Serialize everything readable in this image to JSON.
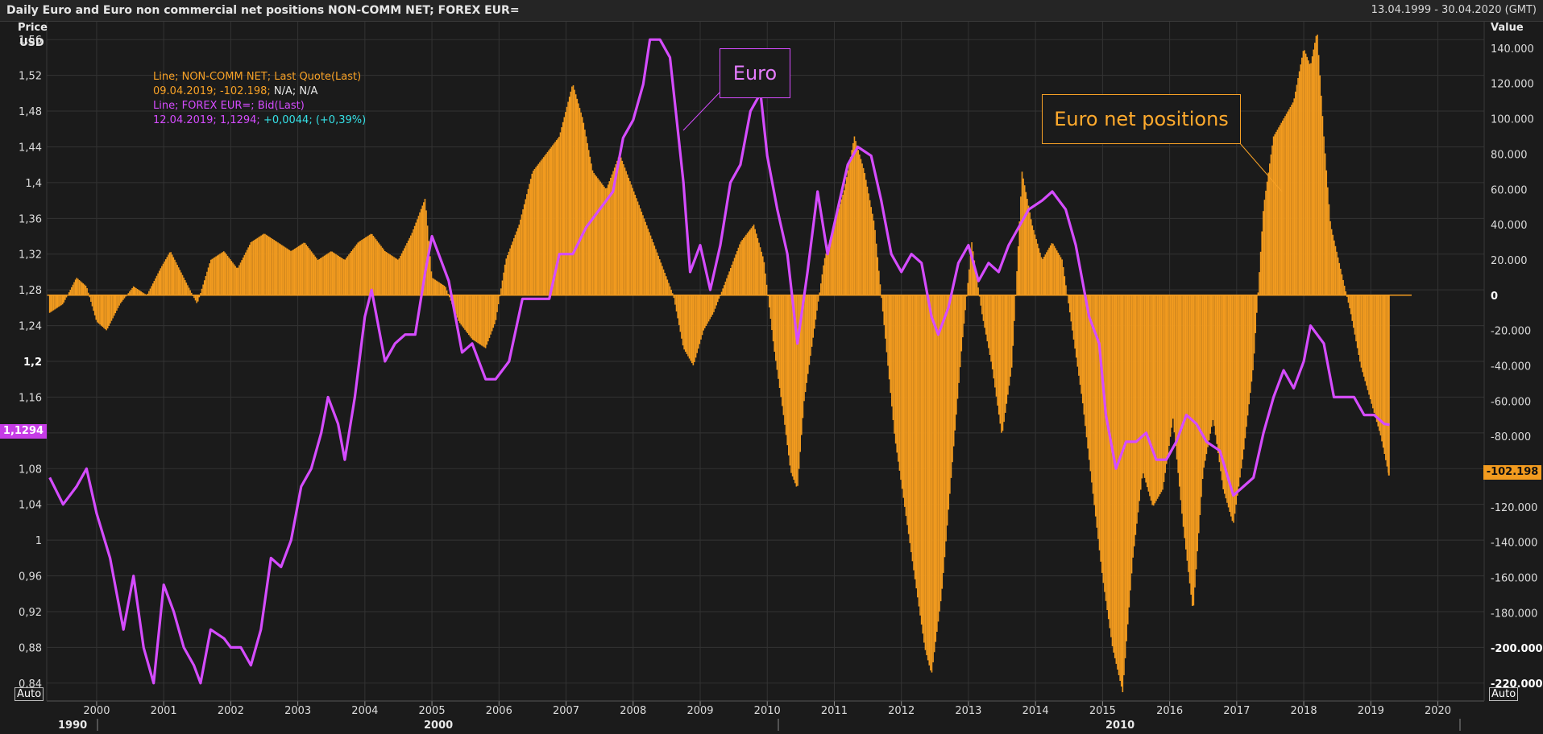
{
  "header": {
    "title": "Daily Euro and Euro non commercial net positions NON-COMM NET; FOREX EUR=",
    "date_range": "13.04.1999 - 30.04.2020 (GMT)"
  },
  "legend": {
    "line1": "Line; NON-COMM NET; Last Quote(Last)",
    "line2_date_value": "09.04.2019; -102.198;",
    "line2_na": " N/A; N/A",
    "line3": "Line; FOREX EUR=; Bid(Last)",
    "line4_date_value": "12.04.2019; 1,1294;",
    "line4_change": " +0,0044; (+0,39%)"
  },
  "left_axis": {
    "unit_line1": "Price",
    "unit_line2": "USD",
    "last_price_tag": "1,1294",
    "auto_label": "Auto"
  },
  "right_axis": {
    "unit": "Value",
    "last_value_tag": "-102.198",
    "auto_label": "Auto"
  },
  "annotations": {
    "euro": "Euro",
    "net_positions": "Euro net positions"
  },
  "decades": [
    "1990",
    "2000",
    "2010"
  ],
  "colors": {
    "euro_line": "#d54cff",
    "net_bars": "#f29b1f",
    "background": "#1b1b1b",
    "grid": "#333333"
  },
  "chart_data": {
    "type": "line+bar",
    "x_axis_years": [
      "2000",
      "2001",
      "2002",
      "2003",
      "2004",
      "2005",
      "2006",
      "2007",
      "2008",
      "2009",
      "2010",
      "2011",
      "2012",
      "2013",
      "2014",
      "2015",
      "2016",
      "2017",
      "2018",
      "2019",
      "2020"
    ],
    "x_range": [
      1999.28,
      2020.33
    ],
    "left_axis": {
      "label": "Price USD",
      "ylim": [
        0.82,
        1.58
      ],
      "ticks": [
        "1,56",
        "1,52",
        "1,48",
        "1,44",
        "1,4",
        "1,36",
        "1,32",
        "1,28",
        "1,24",
        "1,2",
        "1,16",
        "1,12",
        "1,08",
        "1,04",
        "1",
        "0,96",
        "0,92",
        "0,88",
        "0,84"
      ],
      "tick_values": [
        1.56,
        1.52,
        1.48,
        1.44,
        1.4,
        1.36,
        1.32,
        1.28,
        1.24,
        1.2,
        1.16,
        1.12,
        1.08,
        1.04,
        1.0,
        0.96,
        0.92,
        0.88,
        0.84
      ]
    },
    "right_axis": {
      "label": "Value",
      "ylim": [
        -230000,
        155000
      ],
      "ticks": [
        "140.000",
        "120.000",
        "100.000",
        "80.000",
        "60.000",
        "40.000",
        "20.000",
        "0",
        "-20.000",
        "-40.000",
        "-60.000",
        "-80.000",
        "-100.000",
        "-120.000",
        "-140.000",
        "-160.000",
        "-180.000",
        "-200.000",
        "-220.000"
      ],
      "tick_values": [
        140000,
        120000,
        100000,
        80000,
        60000,
        40000,
        20000,
        0,
        -20000,
        -40000,
        -60000,
        -80000,
        -100000,
        -120000,
        -140000,
        -160000,
        -180000,
        -200000,
        -220000
      ]
    },
    "series": [
      {
        "name": "FOREX EUR=",
        "kind": "line",
        "points": [
          [
            1999.3,
            1.07
          ],
          [
            1999.5,
            1.04
          ],
          [
            1999.7,
            1.06
          ],
          [
            1999.85,
            1.08
          ],
          [
            2000.0,
            1.03
          ],
          [
            2000.2,
            0.98
          ],
          [
            2000.4,
            0.9
          ],
          [
            2000.55,
            0.96
          ],
          [
            2000.7,
            0.88
          ],
          [
            2000.85,
            0.84
          ],
          [
            2001.0,
            0.95
          ],
          [
            2001.15,
            0.92
          ],
          [
            2001.3,
            0.88
          ],
          [
            2001.45,
            0.86
          ],
          [
            2001.55,
            0.84
          ],
          [
            2001.7,
            0.9
          ],
          [
            2001.9,
            0.89
          ],
          [
            2002.0,
            0.88
          ],
          [
            2002.15,
            0.88
          ],
          [
            2002.3,
            0.86
          ],
          [
            2002.45,
            0.9
          ],
          [
            2002.6,
            0.98
          ],
          [
            2002.75,
            0.97
          ],
          [
            2002.9,
            1.0
          ],
          [
            2003.05,
            1.06
          ],
          [
            2003.2,
            1.08
          ],
          [
            2003.35,
            1.12
          ],
          [
            2003.45,
            1.16
          ],
          [
            2003.6,
            1.13
          ],
          [
            2003.7,
            1.09
          ],
          [
            2003.85,
            1.16
          ],
          [
            2004.0,
            1.25
          ],
          [
            2004.1,
            1.28
          ],
          [
            2004.3,
            1.2
          ],
          [
            2004.45,
            1.22
          ],
          [
            2004.6,
            1.23
          ],
          [
            2004.75,
            1.23
          ],
          [
            2004.9,
            1.3
          ],
          [
            2005.0,
            1.34
          ],
          [
            2005.1,
            1.32
          ],
          [
            2005.25,
            1.29
          ],
          [
            2005.45,
            1.21
          ],
          [
            2005.6,
            1.22
          ],
          [
            2005.8,
            1.18
          ],
          [
            2005.95,
            1.18
          ],
          [
            2006.15,
            1.2
          ],
          [
            2006.35,
            1.27
          ],
          [
            2006.55,
            1.27
          ],
          [
            2006.75,
            1.27
          ],
          [
            2006.9,
            1.32
          ],
          [
            2007.1,
            1.32
          ],
          [
            2007.3,
            1.35
          ],
          [
            2007.5,
            1.37
          ],
          [
            2007.7,
            1.39
          ],
          [
            2007.85,
            1.45
          ],
          [
            2008.0,
            1.47
          ],
          [
            2008.15,
            1.51
          ],
          [
            2008.25,
            1.56
          ],
          [
            2008.4,
            1.56
          ],
          [
            2008.55,
            1.54
          ],
          [
            2008.65,
            1.47
          ],
          [
            2008.75,
            1.4
          ],
          [
            2008.85,
            1.3
          ],
          [
            2009.0,
            1.33
          ],
          [
            2009.15,
            1.28
          ],
          [
            2009.3,
            1.33
          ],
          [
            2009.45,
            1.4
          ],
          [
            2009.6,
            1.42
          ],
          [
            2009.75,
            1.48
          ],
          [
            2009.9,
            1.5
          ],
          [
            2010.0,
            1.43
          ],
          [
            2010.15,
            1.37
          ],
          [
            2010.3,
            1.32
          ],
          [
            2010.45,
            1.22
          ],
          [
            2010.6,
            1.3
          ],
          [
            2010.75,
            1.39
          ],
          [
            2010.9,
            1.32
          ],
          [
            2011.05,
            1.37
          ],
          [
            2011.2,
            1.42
          ],
          [
            2011.35,
            1.44
          ],
          [
            2011.55,
            1.43
          ],
          [
            2011.7,
            1.38
          ],
          [
            2011.85,
            1.32
          ],
          [
            2012.0,
            1.3
          ],
          [
            2012.15,
            1.32
          ],
          [
            2012.3,
            1.31
          ],
          [
            2012.45,
            1.25
          ],
          [
            2012.55,
            1.23
          ],
          [
            2012.7,
            1.26
          ],
          [
            2012.85,
            1.31
          ],
          [
            2013.0,
            1.33
          ],
          [
            2013.15,
            1.29
          ],
          [
            2013.3,
            1.31
          ],
          [
            2013.45,
            1.3
          ],
          [
            2013.6,
            1.33
          ],
          [
            2013.75,
            1.35
          ],
          [
            2013.9,
            1.37
          ],
          [
            2014.1,
            1.38
          ],
          [
            2014.25,
            1.39
          ],
          [
            2014.45,
            1.37
          ],
          [
            2014.6,
            1.33
          ],
          [
            2014.8,
            1.25
          ],
          [
            2014.95,
            1.22
          ],
          [
            2015.05,
            1.14
          ],
          [
            2015.2,
            1.08
          ],
          [
            2015.35,
            1.11
          ],
          [
            2015.5,
            1.11
          ],
          [
            2015.65,
            1.12
          ],
          [
            2015.8,
            1.09
          ],
          [
            2015.95,
            1.09
          ],
          [
            2016.1,
            1.11
          ],
          [
            2016.25,
            1.14
          ],
          [
            2016.4,
            1.13
          ],
          [
            2016.55,
            1.11
          ],
          [
            2016.75,
            1.1
          ],
          [
            2016.95,
            1.05
          ],
          [
            2017.1,
            1.06
          ],
          [
            2017.25,
            1.07
          ],
          [
            2017.4,
            1.12
          ],
          [
            2017.55,
            1.16
          ],
          [
            2017.7,
            1.19
          ],
          [
            2017.85,
            1.17
          ],
          [
            2018.0,
            1.2
          ],
          [
            2018.1,
            1.24
          ],
          [
            2018.2,
            1.23
          ],
          [
            2018.3,
            1.22
          ],
          [
            2018.45,
            1.16
          ],
          [
            2018.6,
            1.16
          ],
          [
            2018.75,
            1.16
          ],
          [
            2018.9,
            1.14
          ],
          [
            2019.05,
            1.14
          ],
          [
            2019.2,
            1.13
          ],
          [
            2019.28,
            1.129
          ]
        ]
      },
      {
        "name": "NON-COMM NET",
        "kind": "bar",
        "points": [
          [
            1999.3,
            -10000
          ],
          [
            1999.5,
            -5000
          ],
          [
            1999.7,
            10000
          ],
          [
            1999.85,
            5000
          ],
          [
            2000.0,
            -15000
          ],
          [
            2000.15,
            -20000
          ],
          [
            2000.35,
            -5000
          ],
          [
            2000.55,
            5000
          ],
          [
            2000.75,
            0
          ],
          [
            2000.95,
            15000
          ],
          [
            2001.1,
            25000
          ],
          [
            2001.3,
            10000
          ],
          [
            2001.5,
            -5000
          ],
          [
            2001.7,
            20000
          ],
          [
            2001.9,
            25000
          ],
          [
            2002.1,
            15000
          ],
          [
            2002.3,
            30000
          ],
          [
            2002.5,
            35000
          ],
          [
            2002.7,
            30000
          ],
          [
            2002.9,
            25000
          ],
          [
            2003.1,
            30000
          ],
          [
            2003.3,
            20000
          ],
          [
            2003.5,
            25000
          ],
          [
            2003.7,
            20000
          ],
          [
            2003.9,
            30000
          ],
          [
            2004.1,
            35000
          ],
          [
            2004.3,
            25000
          ],
          [
            2004.5,
            20000
          ],
          [
            2004.7,
            35000
          ],
          [
            2004.9,
            55000
          ],
          [
            2005.0,
            10000
          ],
          [
            2005.2,
            5000
          ],
          [
            2005.4,
            -15000
          ],
          [
            2005.6,
            -25000
          ],
          [
            2005.8,
            -30000
          ],
          [
            2005.95,
            -15000
          ],
          [
            2006.1,
            20000
          ],
          [
            2006.3,
            40000
          ],
          [
            2006.5,
            70000
          ],
          [
            2006.7,
            80000
          ],
          [
            2006.9,
            90000
          ],
          [
            2007.1,
            120000
          ],
          [
            2007.25,
            100000
          ],
          [
            2007.4,
            70000
          ],
          [
            2007.6,
            60000
          ],
          [
            2007.8,
            80000
          ],
          [
            2008.0,
            60000
          ],
          [
            2008.2,
            40000
          ],
          [
            2008.4,
            20000
          ],
          [
            2008.6,
            0
          ],
          [
            2008.75,
            -30000
          ],
          [
            2008.9,
            -40000
          ],
          [
            2009.05,
            -20000
          ],
          [
            2009.2,
            -10000
          ],
          [
            2009.4,
            10000
          ],
          [
            2009.6,
            30000
          ],
          [
            2009.8,
            40000
          ],
          [
            2009.95,
            20000
          ],
          [
            2010.1,
            -30000
          ],
          [
            2010.25,
            -70000
          ],
          [
            2010.35,
            -100000
          ],
          [
            2010.45,
            -110000
          ],
          [
            2010.55,
            -60000
          ],
          [
            2010.7,
            -20000
          ],
          [
            2010.85,
            20000
          ],
          [
            2011.0,
            40000
          ],
          [
            2011.15,
            60000
          ],
          [
            2011.3,
            90000
          ],
          [
            2011.45,
            70000
          ],
          [
            2011.6,
            40000
          ],
          [
            2011.75,
            -20000
          ],
          [
            2011.9,
            -80000
          ],
          [
            2012.05,
            -120000
          ],
          [
            2012.2,
            -160000
          ],
          [
            2012.35,
            -200000
          ],
          [
            2012.45,
            -215000
          ],
          [
            2012.6,
            -170000
          ],
          [
            2012.75,
            -100000
          ],
          [
            2012.9,
            -30000
          ],
          [
            2013.05,
            30000
          ],
          [
            2013.2,
            -10000
          ],
          [
            2013.35,
            -40000
          ],
          [
            2013.5,
            -80000
          ],
          [
            2013.65,
            -40000
          ],
          [
            2013.8,
            70000
          ],
          [
            2013.95,
            40000
          ],
          [
            2014.1,
            20000
          ],
          [
            2014.25,
            30000
          ],
          [
            2014.4,
            20000
          ],
          [
            2014.55,
            -20000
          ],
          [
            2014.7,
            -60000
          ],
          [
            2014.85,
            -110000
          ],
          [
            2015.0,
            -160000
          ],
          [
            2015.15,
            -200000
          ],
          [
            2015.3,
            -225000
          ],
          [
            2015.45,
            -150000
          ],
          [
            2015.6,
            -100000
          ],
          [
            2015.75,
            -120000
          ],
          [
            2015.9,
            -110000
          ],
          [
            2016.05,
            -70000
          ],
          [
            2016.2,
            -130000
          ],
          [
            2016.35,
            -180000
          ],
          [
            2016.5,
            -100000
          ],
          [
            2016.65,
            -70000
          ],
          [
            2016.8,
            -110000
          ],
          [
            2016.95,
            -130000
          ],
          [
            2017.1,
            -90000
          ],
          [
            2017.25,
            -40000
          ],
          [
            2017.4,
            50000
          ],
          [
            2017.55,
            90000
          ],
          [
            2017.7,
            100000
          ],
          [
            2017.85,
            110000
          ],
          [
            2018.0,
            140000
          ],
          [
            2018.1,
            130000
          ],
          [
            2018.2,
            150000
          ],
          [
            2018.3,
            90000
          ],
          [
            2018.4,
            40000
          ],
          [
            2018.55,
            15000
          ],
          [
            2018.7,
            -10000
          ],
          [
            2018.85,
            -40000
          ],
          [
            2019.0,
            -60000
          ],
          [
            2019.15,
            -80000
          ],
          [
            2019.27,
            -102198
          ]
        ]
      }
    ]
  }
}
